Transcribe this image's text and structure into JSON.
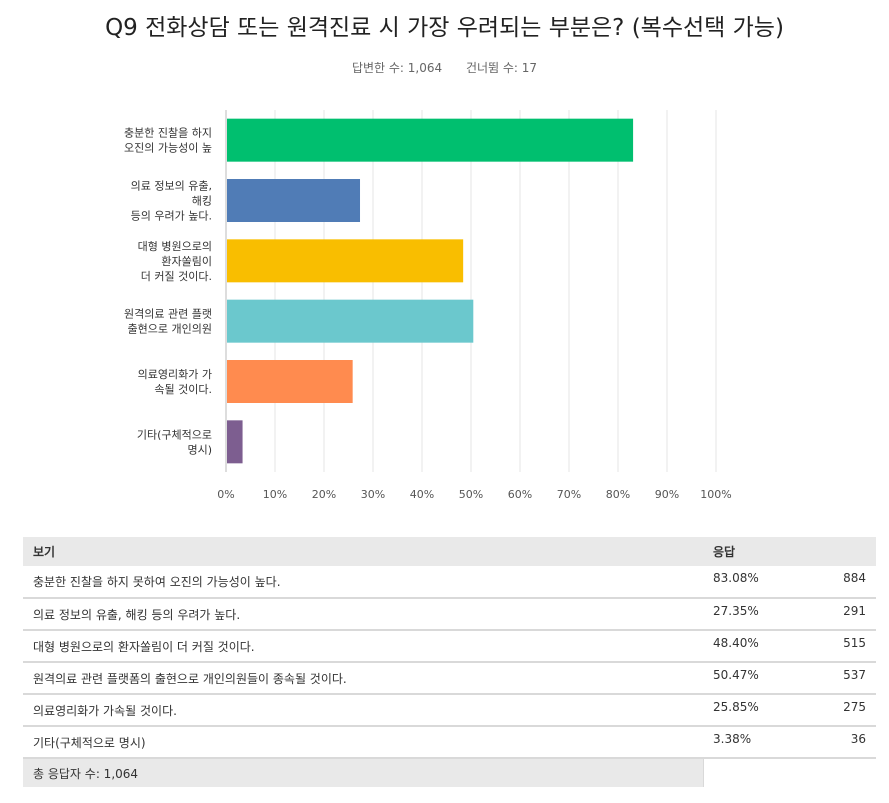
{
  "header": {
    "title": "Q9 전화상담 또는 원격진료 시 가장 우려되는 부분은? (복수선택 가능)",
    "answered": "답변한 수: 1,064",
    "skipped": "건너뜀 수: 17"
  },
  "chart_data": {
    "type": "bar",
    "orientation": "horizontal",
    "categories": [
      [
        "충분한 진찰을 하지",
        "오진의 가능성이 높"
      ],
      [
        "의료 정보의 유출,",
        "해킹",
        "등의 우려가 높다."
      ],
      [
        "대형 병원으로의",
        "환자쏠림이",
        "더 커질 것이다."
      ],
      [
        "원격의료 관련 플랫",
        "출현으로 개인의원"
      ],
      [
        "의료영리화가 가",
        "속될 것이다."
      ],
      [
        "기타(구체적으로",
        "명시)"
      ]
    ],
    "values": [
      83.08,
      27.35,
      48.4,
      50.47,
      25.85,
      3.38
    ],
    "colors": [
      "#00bf6f",
      "#507cb6",
      "#f9be00",
      "#6bc8cd",
      "#ff8b4f",
      "#7d5e90"
    ],
    "xlim": [
      0,
      100
    ],
    "xticks": [
      "0%",
      "10%",
      "20%",
      "30%",
      "40%",
      "50%",
      "60%",
      "70%",
      "80%",
      "90%",
      "100%"
    ],
    "grid": true
  },
  "table": {
    "headers": [
      "보기",
      "응답",
      ""
    ],
    "rows": [
      {
        "label": "충분한 진찰을 하지 못하여 오진의 가능성이 높다.",
        "pct": "83.08%",
        "count": "884"
      },
      {
        "label": "의료 정보의 유출, 해킹 등의 우려가 높다.",
        "pct": "27.35%",
        "count": "291"
      },
      {
        "label": "대형 병원으로의 환자쏠림이 더 커질 것이다.",
        "pct": "48.40%",
        "count": "515"
      },
      {
        "label": "원격의료 관련 플랫폼의 출현으로 개인의원들이 종속될 것이다.",
        "pct": "50.47%",
        "count": "537"
      },
      {
        "label": "의료영리화가 가속될 것이다.",
        "pct": "25.85%",
        "count": "275"
      },
      {
        "label": "기타(구체적으로 명시)",
        "pct": "3.38%",
        "count": "36"
      }
    ],
    "footer": "총 응답자 수: 1,064"
  }
}
